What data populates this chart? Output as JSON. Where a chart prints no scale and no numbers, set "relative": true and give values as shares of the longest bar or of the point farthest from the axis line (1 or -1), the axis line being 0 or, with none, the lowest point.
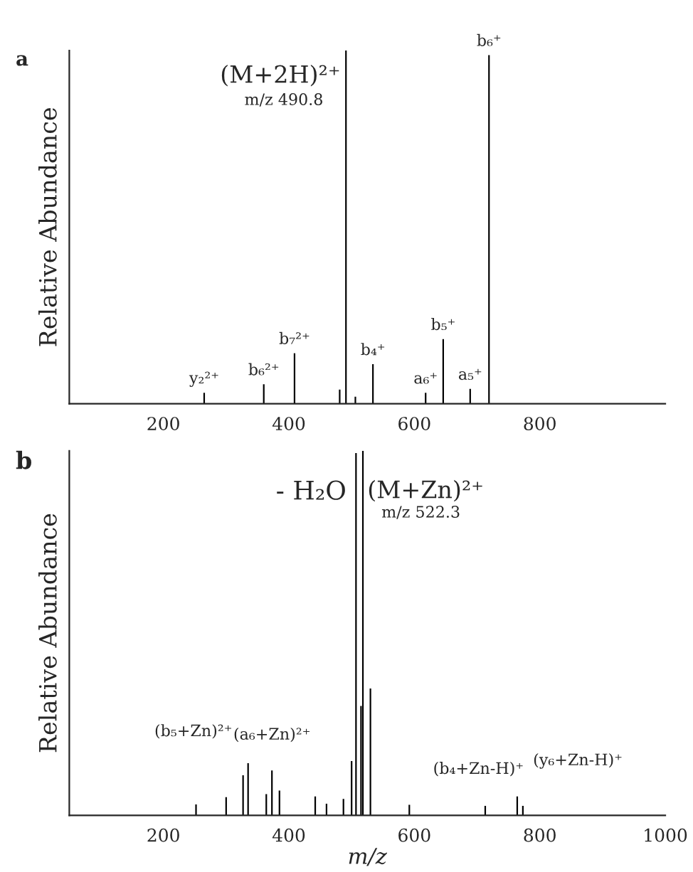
{
  "chart_data": [
    {
      "type": "bar",
      "relative": true,
      "ylabel": "Relative Abundance",
      "xlim": [
        50,
        1000
      ],
      "xticks": [
        200,
        400,
        600,
        800
      ],
      "x": [
        265,
        360,
        409,
        481,
        491,
        506,
        534,
        618,
        646,
        689,
        719
      ],
      "values": [
        0.031,
        0.055,
        0.143,
        0.04,
        1.0,
        0.02,
        0.112,
        0.031,
        0.183,
        0.042,
        0.987
      ],
      "color": "#000000",
      "annotations": [
        "a",
        "(M+2H)²⁺",
        "m/z 490.8",
        {
          "text": "y₂²⁺",
          "x": 265,
          "y": 0.031
        },
        {
          "text": "b₆²⁺",
          "x": 360,
          "y": 0.055
        },
        {
          "text": "b₇²⁺",
          "x": 409,
          "y": 0.143
        },
        {
          "text": "b₄⁺",
          "x": 534,
          "y": 0.112
        },
        {
          "text": "a₆⁺",
          "x": 618,
          "y": 0.031
        },
        {
          "text": "b₅⁺",
          "x": 646,
          "y": 0.183
        },
        {
          "text": "a₅⁺",
          "x": 689,
          "y": 0.042
        },
        {
          "text": "b₆⁺",
          "x": 719,
          "y": 0.987
        }
      ]
    },
    {
      "type": "bar",
      "relative": true,
      "ylabel": "Relative Abundance",
      "xlabel": "m/z",
      "xlim": [
        50,
        1000
      ],
      "xticks": [
        200,
        400,
        600,
        800,
        1000
      ],
      "x": [
        252,
        300,
        327,
        335,
        364,
        373,
        385,
        442,
        460,
        487,
        500,
        507,
        515,
        518,
        530,
        592,
        713,
        764,
        773
      ],
      "values": [
        0.03,
        0.05,
        0.11,
        0.143,
        0.058,
        0.123,
        0.068,
        0.052,
        0.032,
        0.045,
        0.149,
        0.994,
        0.3,
        1.0,
        0.348,
        0.029,
        0.026,
        0.052,
        0.026
      ],
      "color": "#000000",
      "annotations": [
        "b",
        "- H₂O",
        "(M+Zn)²⁺",
        "m/z 522.3",
        {
          "text": "(b₅+Zn)²⁺",
          "x": 335,
          "y": 0.143
        },
        {
          "text": "(a₆+Zn)²⁺",
          "x": 373,
          "y": 0.123
        },
        {
          "text": "(b₄+Zn-H)⁺",
          "x": 592,
          "y": 0.029
        },
        {
          "text": "(y₆+Zn-H)⁺",
          "x": 764,
          "y": 0.052
        }
      ]
    }
  ]
}
